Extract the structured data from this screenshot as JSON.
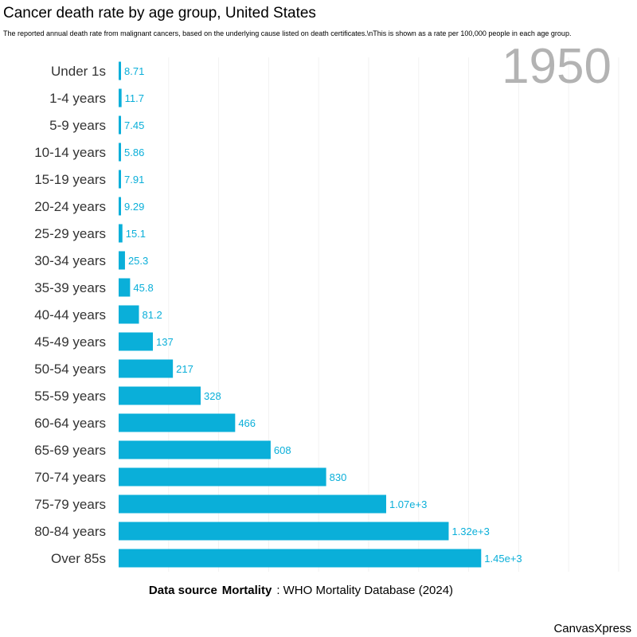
{
  "title": "Cancer death rate by age group, United States",
  "subtitle": "The reported annual death rate from malignant cancers, based on the underlying cause listed on death certificates.\\nThis is shown as a rate per 100,000 people in each age group.",
  "year": "1950",
  "footer": {
    "prefix": ":  WHO Mortality Database (2024)",
    "overlay1": "Data source",
    "overlay2": "Mortality"
  },
  "brand": "CanvasXpress",
  "chart_data": {
    "type": "bar",
    "orientation": "horizontal",
    "categories": [
      "Under 1s",
      "1-4 years",
      "5-9 years",
      "10-14 years",
      "15-19 years",
      "20-24 years",
      "25-29 years",
      "30-34 years",
      "35-39 years",
      "40-44 years",
      "45-49 years",
      "50-54 years",
      "55-59 years",
      "60-64 years",
      "65-69 years",
      "70-74 years",
      "75-79 years",
      "80-84 years",
      "Over 85s"
    ],
    "values": [
      8.71,
      11.7,
      7.45,
      5.86,
      7.91,
      9.29,
      15.1,
      25.3,
      45.8,
      81.2,
      137,
      217,
      328,
      466,
      608,
      830,
      1070,
      1320,
      1450
    ],
    "labels": [
      "8.71",
      "11.7",
      "7.45",
      "5.86",
      "7.91",
      "9.29",
      "15.1",
      "25.3",
      "45.8",
      "81.2",
      "137",
      "217",
      "328",
      "466",
      "608",
      "830",
      "1.07e+3",
      "1.32e+3",
      "1.45e+3"
    ],
    "xlim": [
      0,
      2000
    ],
    "grid": true,
    "color": "#0aafd9"
  }
}
